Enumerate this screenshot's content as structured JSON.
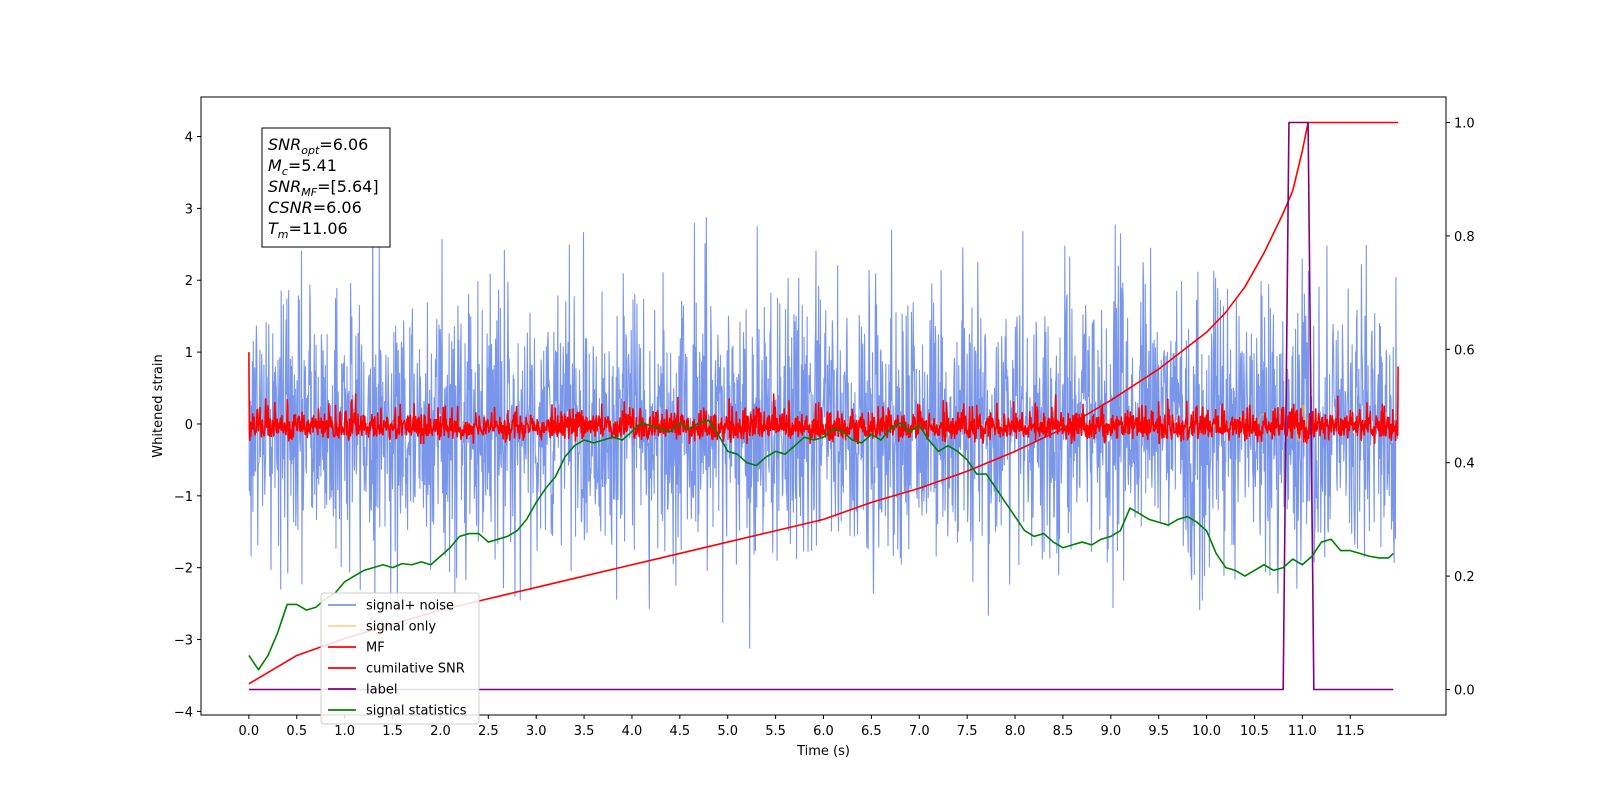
{
  "chart_data": {
    "type": "line",
    "xlabel": "Time (s)",
    "ylabel": "Whitened strain",
    "xlim": [
      -0.5,
      12.5
    ],
    "ylim": [
      -4.05,
      4.55
    ],
    "y2lim": [
      -0.045,
      1.045
    ],
    "x_ticks": [
      0.0,
      0.5,
      1.0,
      1.5,
      2.0,
      2.5,
      3.0,
      3.5,
      4.0,
      4.5,
      5.0,
      5.5,
      6.0,
      6.5,
      7.0,
      7.5,
      8.0,
      8.5,
      9.0,
      9.5,
      10.0,
      10.5,
      11.0,
      11.5
    ],
    "x_tick_labels": [
      "0.0",
      "0.5",
      "1.0",
      "1.5",
      "2.0",
      "2.5",
      "3.0",
      "3.5",
      "4.0",
      "4.5",
      "5.0",
      "5.5",
      "6.0",
      "6.5",
      "7.0",
      "7.5",
      "8.0",
      "8.5",
      "9.0",
      "9.5",
      "10.0",
      "10.5",
      "11.0",
      "11.5"
    ],
    "y_ticks": [
      -4,
      -3,
      -2,
      -1,
      0,
      1,
      2,
      3,
      4
    ],
    "y_tick_labels": [
      "−4",
      "−3",
      "−2",
      "−1",
      "0",
      "1",
      "2",
      "3",
      "4"
    ],
    "y2_ticks": [
      0.0,
      0.2,
      0.4,
      0.6,
      0.8,
      1.0
    ],
    "y2_tick_labels": [
      "0.0",
      "0.2",
      "0.4",
      "0.6",
      "0.8",
      "1.0"
    ],
    "grid": false,
    "legend_position": "lower-left",
    "annotation": [
      {
        "sym": "SNR",
        "sub": "opt",
        "val": "=6.06"
      },
      {
        "sym": "M",
        "sub": "c",
        "val": "=5.41"
      },
      {
        "sym": "SNR",
        "sub": "MF",
        "val": "=[5.64]"
      },
      {
        "sym": "CSNR",
        "sub": "",
        "val": "=6.06"
      },
      {
        "sym": "T",
        "sub": "m",
        "val": "=11.06"
      }
    ],
    "series": [
      {
        "name": "signal+ noise",
        "color": "#4169e1",
        "opacity": 0.7,
        "axis": "left",
        "kind": "noise",
        "sigma": 0.95,
        "t_start": 0.0,
        "t_end": 12.0
      },
      {
        "name": "signal only",
        "color": "#f5b942",
        "opacity": 0.6,
        "axis": "left",
        "kind": "chirp",
        "t_start": 0.0,
        "t_end": 11.06
      },
      {
        "name": "MF",
        "color": "#ff0000",
        "opacity": 1,
        "axis": "left",
        "kind": "mf",
        "t_start": 0.0,
        "t_end": 12.0
      },
      {
        "name": "cumilative SNR",
        "color": "#ff0000",
        "opacity": 1,
        "axis": "right",
        "kind": "line",
        "x": [
          0.0,
          0.5,
          1.0,
          1.5,
          2.0,
          2.5,
          3.0,
          3.5,
          4.0,
          4.5,
          5.0,
          5.5,
          6.0,
          6.5,
          7.0,
          7.5,
          8.0,
          8.5,
          9.0,
          9.5,
          10.0,
          10.2,
          10.4,
          10.6,
          10.8,
          10.9,
          11.0,
          11.06,
          11.5,
          12.0
        ],
        "y": [
          0.01,
          0.06,
          0.09,
          0.115,
          0.14,
          0.16,
          0.18,
          0.2,
          0.22,
          0.24,
          0.26,
          0.28,
          0.3,
          0.33,
          0.355,
          0.385,
          0.42,
          0.46,
          0.51,
          0.565,
          0.63,
          0.665,
          0.71,
          0.77,
          0.84,
          0.88,
          0.95,
          1.0,
          1.0,
          1.0
        ]
      },
      {
        "name": "label",
        "color": "#800080",
        "opacity": 1,
        "axis": "right",
        "kind": "line",
        "x": [
          0.0,
          10.8,
          10.86,
          11.06,
          11.12,
          11.95
        ],
        "y": [
          0.0,
          0.0,
          1.0,
          1.0,
          0.0,
          0.0
        ]
      },
      {
        "name": "signal statistics",
        "color": "#008000",
        "opacity": 1,
        "axis": "right",
        "kind": "line",
        "x": [
          0.0,
          0.1,
          0.2,
          0.3,
          0.4,
          0.5,
          0.6,
          0.7,
          0.8,
          0.9,
          1.0,
          1.1,
          1.2,
          1.3,
          1.4,
          1.5,
          1.6,
          1.7,
          1.8,
          1.9,
          2.0,
          2.1,
          2.2,
          2.3,
          2.4,
          2.5,
          2.6,
          2.7,
          2.8,
          2.9,
          3.0,
          3.1,
          3.2,
          3.3,
          3.4,
          3.5,
          3.6,
          3.7,
          3.8,
          3.9,
          4.0,
          4.1,
          4.2,
          4.3,
          4.4,
          4.5,
          4.6,
          4.7,
          4.8,
          4.9,
          5.0,
          5.1,
          5.2,
          5.3,
          5.4,
          5.5,
          5.6,
          5.7,
          5.8,
          5.9,
          6.0,
          6.1,
          6.2,
          6.3,
          6.4,
          6.5,
          6.6,
          6.7,
          6.8,
          6.9,
          7.0,
          7.1,
          7.2,
          7.3,
          7.4,
          7.5,
          7.6,
          7.7,
          7.8,
          7.9,
          8.0,
          8.1,
          8.2,
          8.3,
          8.4,
          8.5,
          8.6,
          8.7,
          8.8,
          8.9,
          9.0,
          9.1,
          9.2,
          9.3,
          9.4,
          9.5,
          9.6,
          9.7,
          9.8,
          9.9,
          10.0,
          10.1,
          10.2,
          10.3,
          10.4,
          10.5,
          10.6,
          10.7,
          10.8,
          10.9,
          11.0,
          11.1,
          11.2,
          11.3,
          11.4,
          11.5,
          11.6,
          11.7,
          11.8,
          11.9,
          11.95
        ],
        "y": [
          0.06,
          0.035,
          0.06,
          0.1,
          0.15,
          0.15,
          0.14,
          0.145,
          0.16,
          0.17,
          0.19,
          0.2,
          0.21,
          0.215,
          0.22,
          0.215,
          0.222,
          0.22,
          0.225,
          0.22,
          0.235,
          0.25,
          0.27,
          0.275,
          0.275,
          0.26,
          0.265,
          0.27,
          0.28,
          0.3,
          0.33,
          0.355,
          0.375,
          0.41,
          0.43,
          0.44,
          0.435,
          0.44,
          0.445,
          0.44,
          0.455,
          0.47,
          0.465,
          0.46,
          0.455,
          0.47,
          0.46,
          0.47,
          0.475,
          0.45,
          0.42,
          0.415,
          0.4,
          0.395,
          0.41,
          0.42,
          0.415,
          0.43,
          0.445,
          0.44,
          0.445,
          0.46,
          0.455,
          0.44,
          0.435,
          0.45,
          0.44,
          0.46,
          0.47,
          0.455,
          0.465,
          0.44,
          0.42,
          0.43,
          0.42,
          0.405,
          0.38,
          0.38,
          0.355,
          0.33,
          0.305,
          0.28,
          0.27,
          0.275,
          0.26,
          0.25,
          0.255,
          0.26,
          0.255,
          0.265,
          0.27,
          0.28,
          0.32,
          0.31,
          0.3,
          0.295,
          0.29,
          0.3,
          0.305,
          0.295,
          0.28,
          0.24,
          0.215,
          0.21,
          0.2,
          0.21,
          0.22,
          0.21,
          0.215,
          0.23,
          0.22,
          0.235,
          0.26,
          0.265,
          0.245,
          0.245,
          0.24,
          0.235,
          0.232,
          0.232,
          0.24
        ]
      }
    ]
  }
}
